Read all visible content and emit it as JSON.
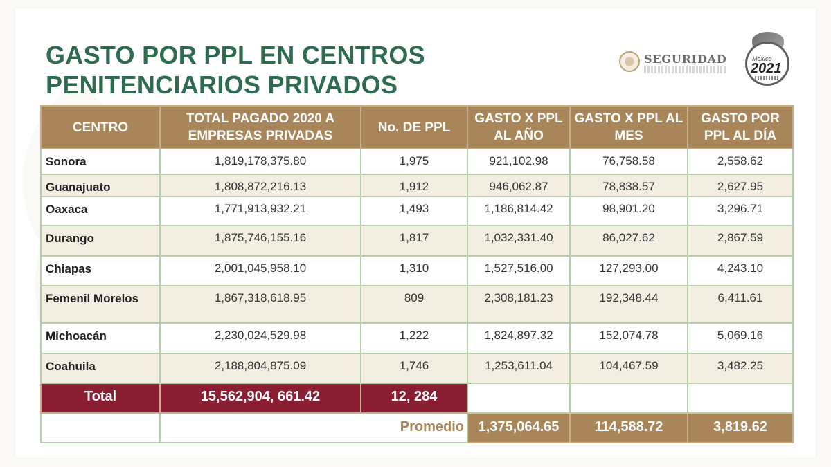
{
  "title_lines": [
    "GASTO POR PPL EN CENTROS",
    "PENITENCIARIOS PRIVADOS"
  ],
  "logos": {
    "seguridad": "SEGURIDAD",
    "badge_country": "México",
    "badge_year": "2021"
  },
  "table": {
    "headers": [
      "CENTRO",
      "TOTAL PAGADO 2020 A EMPRESAS PRIVADAS",
      "No. DE PPL",
      "GASTO X PPL AL AÑO",
      "GASTO X PPL AL MES",
      "GASTO POR PPL AL DÍA"
    ],
    "rows": [
      {
        "centro": "Sonora",
        "total": "1,819,178,375.80",
        "ppl": "1,975",
        "anio": "921,102.98",
        "mes": "76,758.58",
        "dia": "2,558.62"
      },
      {
        "centro": "Guanajuato",
        "total": "1,808,872,216.13",
        "ppl": "1,912",
        "anio": "946,062.87",
        "mes": "78,838.57",
        "dia": "2,627.95"
      },
      {
        "centro": "Oaxaca",
        "total": "1,771,913,932.21",
        "ppl": "1,493",
        "anio": "1,186,814.42",
        "mes": "98,901.20",
        "dia": "3,296.71"
      },
      {
        "centro": "Durango",
        "total": "1,875,746,155.16",
        "ppl": "1,817",
        "anio": "1,032,331.40",
        "mes": "86,027.62",
        "dia": "2,867.59"
      },
      {
        "centro": "Chiapas",
        "total": "2,001,045,958.10",
        "ppl": "1,310",
        "anio": "1,527,516.00",
        "mes": "127,293.00",
        "dia": "4,243.10"
      },
      {
        "centro": "Femenil Morelos",
        "total": "1,867,318,618.95",
        "ppl": "809",
        "anio": "2,308,181.23",
        "mes": "192,348.44",
        "dia": "6,411.61"
      },
      {
        "centro": "Michoacán",
        "total": "2,230,024,529.98",
        "ppl": "1,222",
        "anio": "1,824,897.32",
        "mes": "152,074.78",
        "dia": "5,069.16"
      },
      {
        "centro": "Coahuila",
        "total": "2,188,804,875.09",
        "ppl": "1,746",
        "anio": "1,253,611.04",
        "mes": "104,467.59",
        "dia": "3,482.25"
      }
    ],
    "total": {
      "label": "Total",
      "total": "15,562,904, 661.42",
      "ppl": "12, 284"
    },
    "promedio": {
      "label": "Promedio",
      "anio": "1,375,064.65",
      "mes": "114,588.72",
      "dia": "3,819.62"
    }
  },
  "colors": {
    "title": "#2f6b4f",
    "header_bg": "#a98659",
    "total_bg": "#8a1e32",
    "grid": "#b7cfa9"
  }
}
